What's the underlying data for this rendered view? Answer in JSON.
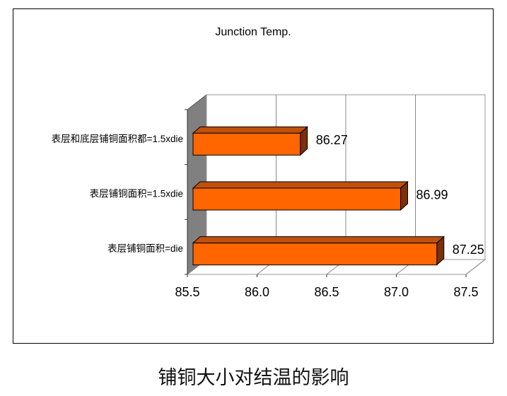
{
  "chart_data": {
    "type": "bar",
    "orientation": "horizontal",
    "style": "3d",
    "title": "Junction Temp.",
    "categories": [
      "表层和底层铺铜面积都=1.5xdie",
      "表层铺铜面积=1.5xdie",
      "表层铺铜面积=die"
    ],
    "values": [
      86.27,
      86.99,
      87.25
    ],
    "data_labels": [
      "86.27",
      "86.99",
      "87.25"
    ],
    "xlim": [
      85.5,
      87.5
    ],
    "x_ticks": [
      "85.5",
      "86.0",
      "86.5",
      "87.0",
      "87.5"
    ],
    "grid": true,
    "legend": "none",
    "colors": {
      "bar_front": "#FF6600",
      "bar_top": "#C0500A",
      "bar_side": "#7A3008",
      "wall": "#808080"
    }
  },
  "caption": "铺铜大小对结温的影响"
}
